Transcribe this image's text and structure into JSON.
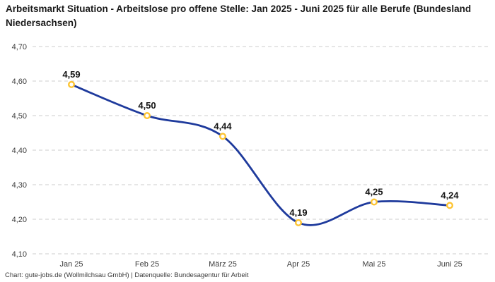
{
  "chart_data": {
    "type": "line",
    "title": "Arbeitsmarkt Situation - Arbeitslose pro offene Stelle: Jan 2025 - Juni 2025 für alle Berufe (Bundesland Niedersachsen)",
    "categories": [
      "Jan 25",
      "Feb 25",
      "März 25",
      "Apr 25",
      "Mai 25",
      "Juni 25"
    ],
    "values": [
      4.59,
      4.5,
      4.44,
      4.19,
      4.25,
      4.24
    ],
    "value_labels": [
      "4,59",
      "4,50",
      "4,44",
      "4,19",
      "4,25",
      "4,24"
    ],
    "xlabel": "",
    "ylabel": "",
    "ylim": [
      4.1,
      4.7
    ],
    "y_ticks": [
      4.1,
      4.2,
      4.3,
      4.4,
      4.5,
      4.6,
      4.7
    ],
    "y_tick_labels": [
      "4,10",
      "4,20",
      "4,30",
      "4,40",
      "4,50",
      "4,60",
      "4,70"
    ],
    "grid": "horizontal-dashed",
    "legend": "none",
    "line_color": "#1e3a9c",
    "marker_stroke_color": "#fdc432",
    "marker_fill_color": "#ffffff",
    "grid_color": "#cccccc",
    "axis_label_color": "#3d3d3d",
    "point_label_color": "#141414"
  },
  "footer": {
    "credit": "Chart: gute-jobs.de (Wollmilchsau GmbH) | Datenquelle: Bundesagentur für Arbeit"
  }
}
